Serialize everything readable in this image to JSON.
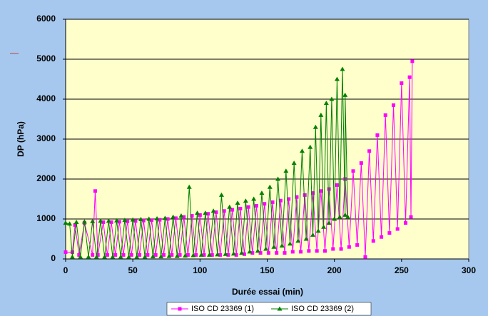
{
  "chart_data": {
    "type": "line",
    "x_label": "Durée essai (min)",
    "y_label": "DP (hPa)",
    "xlim": [
      0,
      300
    ],
    "xticks": [
      0,
      50,
      100,
      150,
      200,
      250,
      300
    ],
    "ylim": [
      0,
      6000
    ],
    "yticks": [
      0,
      1000,
      2000,
      3000,
      4000,
      5000,
      6000
    ],
    "grid": true,
    "legend": "bottom",
    "series": [
      {
        "name": "ISO CD 23369 (1)",
        "color": "#ff00ff",
        "marker": "square",
        "x": [
          0,
          5,
          7,
          10,
          14,
          20,
          22,
          24,
          28,
          31,
          34,
          37,
          40,
          43,
          46,
          49,
          52,
          55,
          58,
          61,
          64,
          67,
          70,
          73,
          76,
          79,
          82,
          85,
          88,
          91,
          94,
          97,
          100,
          103,
          106,
          109,
          112,
          115,
          118,
          121,
          124,
          127,
          130,
          133,
          136,
          139,
          142,
          145,
          148,
          151,
          154,
          157,
          160,
          163,
          166,
          169,
          172,
          175,
          178,
          181,
          184,
          187,
          190,
          193,
          196,
          199,
          202,
          205,
          208,
          211,
          214,
          217,
          220,
          223,
          226,
          229,
          232,
          235,
          238,
          241,
          244,
          247,
          250,
          253,
          256,
          257,
          258
        ],
        "values": [
          170,
          170,
          850,
          100,
          900,
          100,
          1700,
          100,
          920,
          100,
          920,
          100,
          930,
          100,
          940,
          100,
          950,
          100,
          960,
          100,
          970,
          100,
          980,
          100,
          1000,
          100,
          1020,
          100,
          1050,
          100,
          1080,
          100,
          1100,
          100,
          1130,
          100,
          1170,
          100,
          1200,
          100,
          1230,
          100,
          1260,
          120,
          1300,
          150,
          1330,
          150,
          1380,
          150,
          1420,
          150,
          1460,
          150,
          1500,
          180,
          1550,
          180,
          1600,
          200,
          1650,
          200,
          1700,
          200,
          1750,
          250,
          1850,
          250,
          2000,
          300,
          2200,
          350,
          2400,
          50,
          2700,
          450,
          3100,
          550,
          3600,
          650,
          3850,
          750,
          4400,
          900,
          4550,
          1050,
          4950
        ]
      },
      {
        "name": "ISO CD 23369 (2)",
        "color": "#008000",
        "marker": "triangle",
        "x": [
          0,
          3,
          5,
          8,
          11,
          14,
          17,
          20,
          23,
          26,
          29,
          32,
          35,
          38,
          41,
          44,
          47,
          50,
          53,
          56,
          59,
          62,
          65,
          68,
          71,
          74,
          77,
          80,
          83,
          86,
          89,
          92,
          95,
          98,
          101,
          104,
          107,
          110,
          113,
          116,
          119,
          122,
          125,
          128,
          131,
          134,
          137,
          140,
          143,
          146,
          149,
          152,
          155,
          158,
          161,
          164,
          167,
          170,
          173,
          176,
          179,
          182,
          184,
          186,
          188,
          190,
          192,
          194,
          196,
          198,
          200,
          202,
          204,
          206,
          208,
          208,
          210
        ],
        "values": [
          900,
          880,
          50,
          920,
          50,
          930,
          50,
          940,
          50,
          950,
          50,
          950,
          50,
          960,
          50,
          970,
          50,
          980,
          50,
          990,
          50,
          1000,
          60,
          1010,
          60,
          1020,
          70,
          1050,
          70,
          1080,
          80,
          1800,
          90,
          1150,
          100,
          1150,
          100,
          1200,
          110,
          1600,
          120,
          1300,
          130,
          1400,
          150,
          1450,
          180,
          1500,
          200,
          1650,
          250,
          1800,
          300,
          2000,
          330,
          2200,
          380,
          2400,
          450,
          2700,
          500,
          2800,
          600,
          3300,
          700,
          3600,
          800,
          3900,
          900,
          4000,
          1000,
          4500,
          1050,
          4750,
          1100,
          4100,
          1050
        ]
      }
    ]
  }
}
